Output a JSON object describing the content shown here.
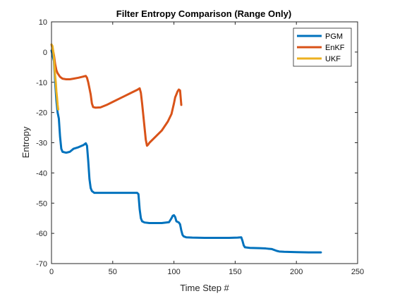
{
  "chart_data": {
    "type": "line",
    "title": "Filter Entropy Comparison (Range Only)",
    "xlabel": "Time Step #",
    "ylabel": "Entropy",
    "xlim": [
      0,
      250
    ],
    "ylim": [
      -70,
      10
    ],
    "xticks": [
      0,
      50,
      100,
      150,
      200,
      250
    ],
    "yticks": [
      10,
      0,
      -10,
      -20,
      -30,
      -40,
      -50,
      -60,
      -70
    ],
    "grid": false,
    "legend_position": "top-right",
    "series": [
      {
        "name": "PGM",
        "color": "#0072BD",
        "points": [
          [
            0,
            0.5
          ],
          [
            2,
            -3
          ],
          [
            3,
            -10
          ],
          [
            4,
            -16
          ],
          [
            5,
            -20
          ],
          [
            6,
            -22
          ],
          [
            7,
            -28
          ],
          [
            8,
            -32
          ],
          [
            9,
            -33
          ],
          [
            12,
            -33.3
          ],
          [
            15,
            -33
          ],
          [
            18,
            -32
          ],
          [
            22,
            -31.5
          ],
          [
            26,
            -30.8
          ],
          [
            28,
            -30.2
          ],
          [
            29,
            -31
          ],
          [
            30,
            -36
          ],
          [
            31,
            -42
          ],
          [
            32,
            -45
          ],
          [
            33,
            -46
          ],
          [
            35,
            -46.6
          ],
          [
            40,
            -46.6
          ],
          [
            50,
            -46.6
          ],
          [
            60,
            -46.6
          ],
          [
            70,
            -46.6
          ],
          [
            71,
            -47
          ],
          [
            72,
            -52
          ],
          [
            73,
            -55
          ],
          [
            74,
            -56
          ],
          [
            76,
            -56.4
          ],
          [
            80,
            -56.6
          ],
          [
            90,
            -56.6
          ],
          [
            96,
            -56.3
          ],
          [
            98,
            -55
          ],
          [
            99,
            -54.2
          ],
          [
            100,
            -54
          ],
          [
            101,
            -54.6
          ],
          [
            102,
            -56
          ],
          [
            104,
            -56.4
          ],
          [
            105,
            -57
          ],
          [
            106,
            -59
          ],
          [
            107,
            -60.5
          ],
          [
            108,
            -61
          ],
          [
            110,
            -61.3
          ],
          [
            115,
            -61.4
          ],
          [
            125,
            -61.5
          ],
          [
            135,
            -61.5
          ],
          [
            145,
            -61.5
          ],
          [
            152,
            -61.4
          ],
          [
            155,
            -61.3
          ],
          [
            156,
            -62.5
          ],
          [
            157,
            -64
          ],
          [
            158,
            -64.6
          ],
          [
            162,
            -64.8
          ],
          [
            170,
            -64.9
          ],
          [
            175,
            -65
          ],
          [
            180,
            -65.2
          ],
          [
            184,
            -65.8
          ],
          [
            186,
            -66
          ],
          [
            190,
            -66.1
          ],
          [
            200,
            -66.2
          ],
          [
            210,
            -66.3
          ],
          [
            220,
            -66.3
          ]
        ]
      },
      {
        "name": "EnKF",
        "color": "#D95319",
        "points": [
          [
            0,
            2.5
          ],
          [
            1,
            1
          ],
          [
            2,
            -1
          ],
          [
            3,
            -4
          ],
          [
            4,
            -6
          ],
          [
            5,
            -7
          ],
          [
            7,
            -8.2
          ],
          [
            9,
            -8.8
          ],
          [
            12,
            -9
          ],
          [
            15,
            -9
          ],
          [
            18,
            -8.8
          ],
          [
            22,
            -8.5
          ],
          [
            25,
            -8.2
          ],
          [
            28,
            -7.9
          ],
          [
            29,
            -8.5
          ],
          [
            30,
            -10
          ],
          [
            31,
            -12
          ],
          [
            32,
            -14
          ],
          [
            33,
            -17
          ],
          [
            34,
            -18.2
          ],
          [
            36,
            -18.4
          ],
          [
            40,
            -18.3
          ],
          [
            45,
            -17.5
          ],
          [
            50,
            -16.5
          ],
          [
            55,
            -15.5
          ],
          [
            60,
            -14.5
          ],
          [
            65,
            -13.5
          ],
          [
            70,
            -12.5
          ],
          [
            72,
            -12
          ],
          [
            73,
            -13.5
          ],
          [
            74,
            -17
          ],
          [
            75,
            -21
          ],
          [
            76,
            -25
          ],
          [
            77,
            -29
          ],
          [
            78,
            -31
          ],
          [
            79,
            -30.6
          ],
          [
            80,
            -30
          ],
          [
            85,
            -28
          ],
          [
            90,
            -26
          ],
          [
            95,
            -23
          ],
          [
            98,
            -20.5
          ],
          [
            100,
            -17
          ],
          [
            101,
            -15
          ],
          [
            102,
            -14
          ],
          [
            103,
            -13
          ],
          [
            104,
            -12.4
          ],
          [
            105,
            -12.7
          ],
          [
            106,
            -17.5
          ]
        ]
      },
      {
        "name": "UKF",
        "color": "#EDB120",
        "points": [
          [
            0,
            2.5
          ],
          [
            0.8,
            2
          ],
          [
            1.5,
            0
          ],
          [
            2,
            -2
          ],
          [
            2.5,
            -5
          ],
          [
            3,
            -8
          ],
          [
            3.5,
            -10
          ],
          [
            4,
            -13
          ],
          [
            4.5,
            -15
          ],
          [
            5,
            -17.5
          ],
          [
            5.5,
            -19
          ]
        ]
      }
    ]
  }
}
